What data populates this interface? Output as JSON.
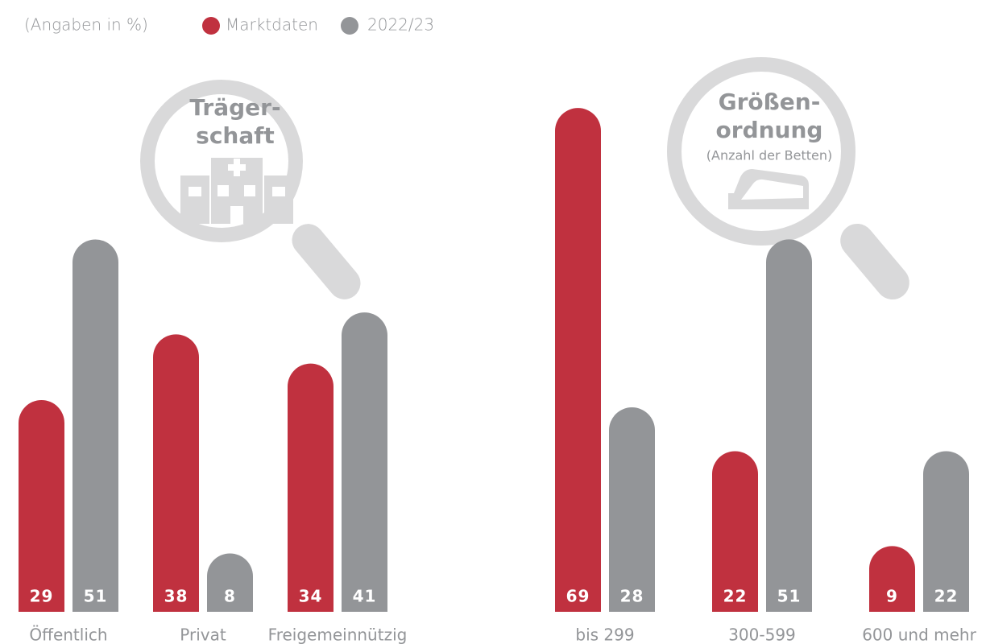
{
  "note": "(Angaben in %)",
  "chart_data": [
    {
      "type": "bar",
      "title": [
        "Träger-",
        "schaft"
      ],
      "categories": [
        "Öffentlich",
        "Privat",
        "Freigemeinnützig"
      ],
      "series": [
        {
          "name": "Marktdaten",
          "color": "#c0313f",
          "values": [
            29,
            38,
            34
          ]
        },
        {
          "name": "2022/23",
          "color": "#939598",
          "values": [
            51,
            8,
            41
          ]
        }
      ]
    },
    {
      "type": "bar",
      "title": [
        "Größen-",
        "ordnung"
      ],
      "subtitle": "(Anzahl der Betten)",
      "categories": [
        "bis 299",
        "300-599",
        "600 und mehr"
      ],
      "series": [
        {
          "name": "Marktdaten",
          "color": "#c0313f",
          "values": [
            69,
            22,
            9
          ]
        },
        {
          "name": "2022/23",
          "color": "#939598",
          "values": [
            28,
            51,
            22
          ]
        }
      ]
    }
  ]
}
